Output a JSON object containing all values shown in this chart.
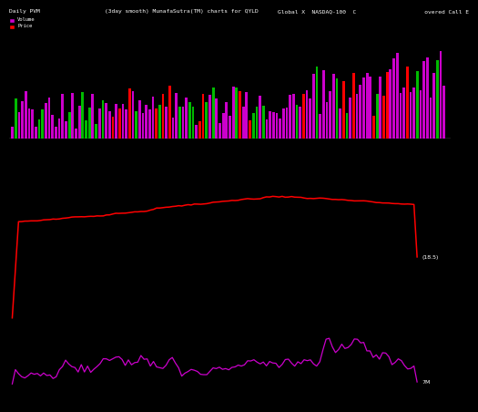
{
  "title_left": "Daily PVM",
  "title_center": "(3day smooth) MunafaSutra(TM) charts for QYLD",
  "title_right": "Global X  NASDAQ-100  C                    overed Call E",
  "legend_volume_color": "#cc00cc",
  "legend_price_color": "#ff0000",
  "background_color": "#000000",
  "bar_up_color": "#cc00cc",
  "bar_down_color": "#ff0000",
  "bar_green_color": "#00bb00",
  "price_line_color": "#ff0000",
  "volume_line_color": "#cc00cc",
  "label_7M": "7M",
  "label_18_5": "(18.5)",
  "n_points": 130
}
